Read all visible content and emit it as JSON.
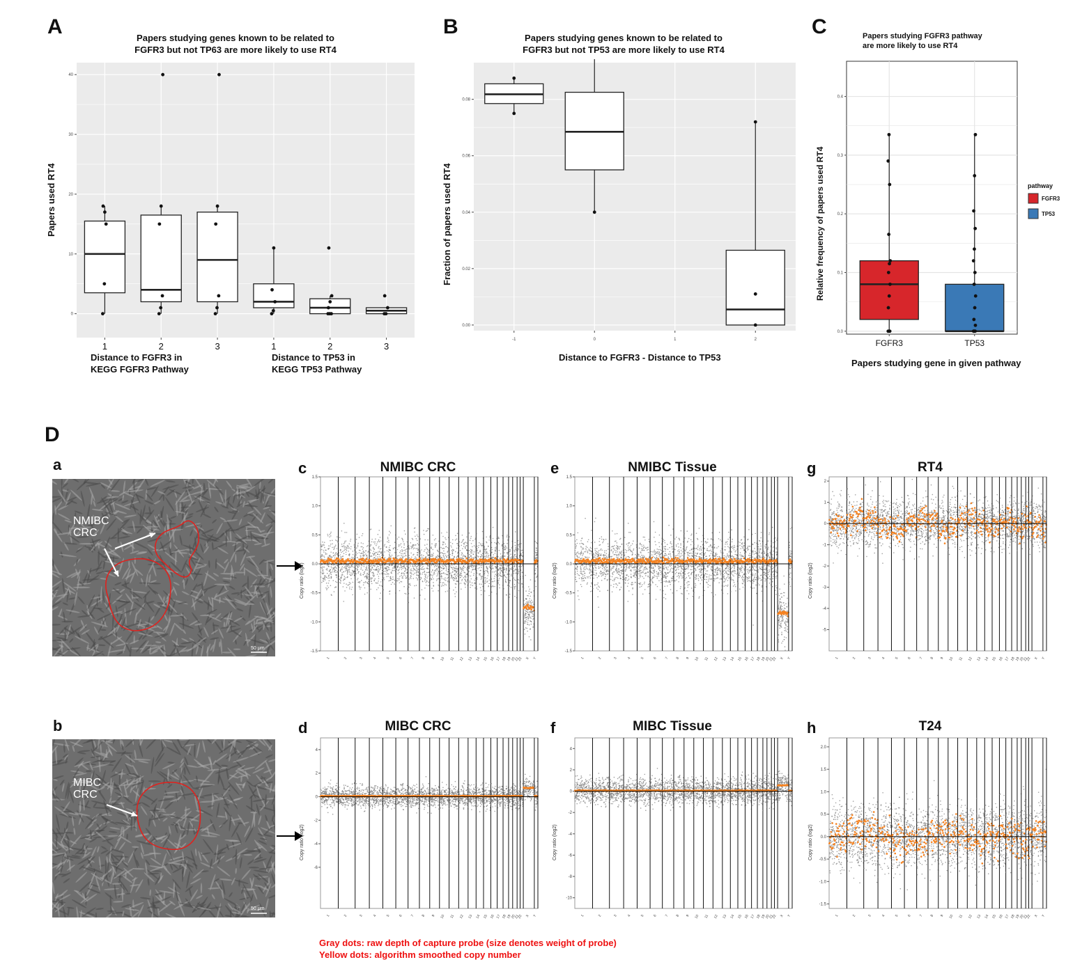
{
  "panels": {
    "A": {
      "letter": "A",
      "title_line1": "Papers studying genes known to be related to",
      "title_line2": "FGFR3 but not TP63 are more likely to use RT4",
      "ylabel": "Papers used RT4",
      "xgroup1_line1": "Distance to FGFR3 in",
      "xgroup1_line2": "KEGG FGFR3 Pathway",
      "xgroup2_line1": "Distance to TP53  in",
      "xgroup2_line2": "KEGG TP53 Pathway"
    },
    "B": {
      "letter": "B",
      "title_line1": "Papers studying genes known to be related to",
      "title_line2": "FGFR3 but not TP53 are more likely to use RT4",
      "ylabel": "Fraction of papers used RT4",
      "xlabel": "Distance to FGFR3 - Distance to TP53"
    },
    "C": {
      "letter": "C",
      "title_line1": "Papers studying FGFR3 pathway",
      "title_line2": "are more likely to use RT4",
      "ylabel": "Relative frequency  of papers  used RT4",
      "xlabel": "Papers studying gene in given pathway",
      "legend_title": "pathway",
      "legend_items": [
        "FGFR3",
        "TP53"
      ],
      "colors": {
        "FGFR3": "#d7262b",
        "TP53": "#3a79b6"
      }
    },
    "D": {
      "letter": "D",
      "sub_a": "a",
      "sub_b": "b",
      "label_a_line1": "NMIBC",
      "label_a_line2": "CRC",
      "label_b_line1": "MIBC",
      "label_b_line2": "CRC",
      "scale_bar": "50 μm",
      "cnv_ylabel": "Copy ratio (log2)",
      "note_line1": "Gray dots: raw depth of capture probe (size denotes weight of probe)",
      "note_line2": "Yellow dots: algorithm smoothed copy number",
      "cnv_plots": [
        {
          "letter": "c",
          "title": "NMIBC CRC",
          "yticks": [
            "1.5",
            "1.0",
            "0.5",
            "0.0",
            "-0.5",
            "-1.0",
            "-1.5"
          ]
        },
        {
          "letter": "e",
          "title": "NMIBC Tissue",
          "yticks": [
            "1.5",
            "1.0",
            "0.5",
            "0.0",
            "-0.5",
            "-1.0",
            "-1.5"
          ]
        },
        {
          "letter": "g",
          "title": "RT4",
          "yticks": [
            "2",
            "1",
            "0",
            "-1",
            "-2",
            "-3",
            "-4",
            "-5"
          ]
        },
        {
          "letter": "d",
          "title": "MIBC CRC",
          "yticks": [
            "4",
            "2",
            "0",
            "-2",
            "-4",
            "-6"
          ]
        },
        {
          "letter": "f",
          "title": "MIBC Tissue",
          "yticks": [
            "4",
            "2",
            "0",
            "-2",
            "-4",
            "-6",
            "-8",
            "-10"
          ]
        },
        {
          "letter": "h",
          "title": "T24",
          "yticks": [
            "2.0",
            "1.5",
            "1.0",
            "0.5",
            "0.0",
            "-0.5",
            "-1.0",
            "-1.5"
          ]
        }
      ],
      "chromosomes": [
        "1",
        "2",
        "3",
        "4",
        "5",
        "6",
        "7",
        "8",
        "9",
        "10",
        "11",
        "12",
        "13",
        "14",
        "15",
        "16",
        "17",
        "18",
        "19",
        "20",
        "21",
        "22",
        "X",
        "Y"
      ]
    }
  },
  "chart_data": [
    {
      "type": "box",
      "id": "A",
      "categories": [
        "1",
        "2",
        "3",
        "1",
        "2",
        "3"
      ],
      "ylim": [
        -4,
        42
      ],
      "yticks": [
        0,
        10,
        20,
        30,
        40
      ],
      "boxes": [
        {
          "q1": 3.5,
          "median": 10,
          "q3": 15.5,
          "min": 0,
          "max": 18,
          "points": [
            0,
            5,
            15,
            18,
            17
          ]
        },
        {
          "q1": 2,
          "median": 4,
          "q3": 16.5,
          "min": 0,
          "max": 18,
          "points": [
            0,
            1,
            3,
            15,
            18,
            40
          ]
        },
        {
          "q1": 2,
          "median": 9,
          "q3": 17,
          "min": 0,
          "max": 18,
          "points": [
            0,
            1,
            3,
            15,
            18,
            40
          ]
        },
        {
          "q1": 1,
          "median": 2,
          "q3": 5,
          "min": 0,
          "max": 11,
          "points": [
            0,
            0.5,
            2,
            4,
            11
          ]
        },
        {
          "q1": 0,
          "median": 1,
          "q3": 2.5,
          "min": 0,
          "max": 3,
          "points": [
            0,
            0,
            0,
            1,
            2,
            3,
            11
          ]
        },
        {
          "q1": 0,
          "median": 0.5,
          "q3": 1,
          "min": 0,
          "max": 1,
          "points": [
            0,
            0,
            1,
            3
          ]
        }
      ]
    },
    {
      "type": "box",
      "id": "B",
      "categories": [
        "-1",
        "0",
        "1",
        "2"
      ],
      "ylim": [
        -0.002,
        0.093
      ],
      "yticks": [
        0.0,
        0.02,
        0.04,
        0.06,
        0.08
      ],
      "boxes": [
        {
          "cat": "-1",
          "q1": 0.0785,
          "median": 0.0818,
          "q3": 0.0855,
          "min": 0.075,
          "max": 0.0875,
          "points": [
            0.075,
            0.0875
          ]
        },
        {
          "cat": "0",
          "q1": 0.055,
          "median": 0.0685,
          "q3": 0.0825,
          "min": 0.04,
          "max": 0.095,
          "points": [
            0.04,
            0.095
          ]
        },
        {
          "cat": "2",
          "q1": 0.0,
          "median": 0.0055,
          "q3": 0.0265,
          "min": 0.0,
          "max": 0.072,
          "points": [
            0.0,
            0.011,
            0.072
          ]
        }
      ]
    },
    {
      "type": "box",
      "id": "C",
      "categories": [
        "FGFR3",
        "TP53"
      ],
      "ylim": [
        -0.005,
        0.46
      ],
      "yticks": [
        0.0,
        0.1,
        0.2,
        0.3,
        0.4
      ],
      "boxes": [
        {
          "q1": 0.02,
          "median": 0.08,
          "q3": 0.12,
          "min": 0.0,
          "max": 0.335,
          "points": [
            0,
            0,
            0,
            0.04,
            0.06,
            0.08,
            0.1,
            0.115,
            0.12,
            0.165,
            0.25,
            0.29,
            0.335
          ]
        },
        {
          "q1": 0.0,
          "median": 0.0,
          "q3": 0.08,
          "min": 0.0,
          "max": 0.335,
          "points": [
            0,
            0,
            0,
            0,
            0,
            0.01,
            0.02,
            0.04,
            0.06,
            0.08,
            0.1,
            0.12,
            0.14,
            0.175,
            0.205,
            0.265,
            0.335
          ]
        }
      ]
    }
  ]
}
